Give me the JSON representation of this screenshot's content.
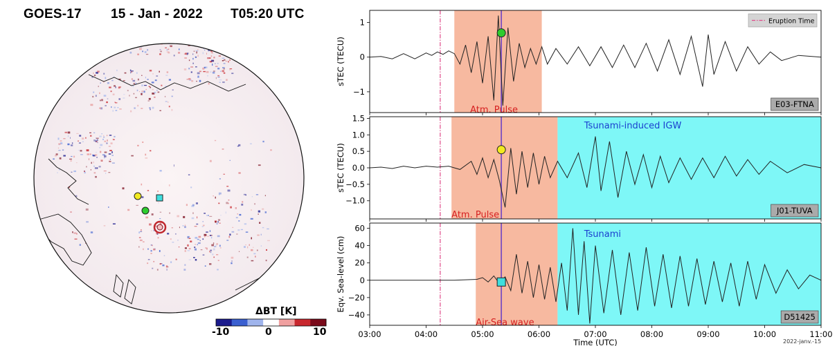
{
  "header": {
    "satellite": "GOES-17",
    "date": "15 - Jan - 2022",
    "time": "T05:20 UTC"
  },
  "colorbar": {
    "title": "ΔBT [K]",
    "min_label": "-10",
    "mid_label": "0",
    "max_label": "10",
    "colors": [
      "#1a1a8c",
      "#3a5fd0",
      "#9fb4ec",
      "#ffffff",
      "#f0a0a0",
      "#c8282e",
      "#7a0a1a"
    ]
  },
  "markers": {
    "yellow": "#f2ea20",
    "green": "#2ecc2e",
    "cyan": "#3fdede"
  },
  "colors": {
    "pulse_shade": "#f7b9a0",
    "igw_shade": "#7ef7f7",
    "vline": "#7a4fc0",
    "eruption_line": "#e04a8a",
    "annotation_red": "#d62020",
    "annotation_blue": "#1a3fcf"
  },
  "footnote": "2022-janv.-15",
  "chart_data": [
    {
      "type": "line",
      "station": "E03-FTNA",
      "ylabel": "sTEC (TECU)",
      "xlim": [
        3.0,
        11.0
      ],
      "ylim": [
        -1.6,
        1.35
      ],
      "yticks": [
        -1,
        0,
        1
      ],
      "ytick_labels": [
        "−1",
        "0",
        "1"
      ],
      "eruption_time": 4.25,
      "current_time": 5.333,
      "legend": "Eruption Time",
      "shaded": [
        {
          "from": 4.5,
          "to": 6.05,
          "kind": "pulse"
        }
      ],
      "annotations": [
        {
          "text": "Atm. Pulse",
          "x": 4.78,
          "y": -1.5,
          "kind": "red"
        }
      ],
      "marker": {
        "shape": "circle",
        "color": "green",
        "x": 5.333,
        "y": 0.7
      },
      "series": [
        {
          "values": [
            [
              3.0,
              0.0
            ],
            [
              3.2,
              0.02
            ],
            [
              3.4,
              -0.05
            ],
            [
              3.6,
              0.1
            ],
            [
              3.8,
              -0.05
            ],
            [
              4.0,
              0.12
            ],
            [
              4.1,
              0.05
            ],
            [
              4.2,
              0.15
            ],
            [
              4.3,
              0.08
            ],
            [
              4.4,
              0.18
            ],
            [
              4.5,
              0.1
            ],
            [
              4.6,
              -0.2
            ],
            [
              4.7,
              0.35
            ],
            [
              4.8,
              -0.45
            ],
            [
              4.9,
              0.45
            ],
            [
              5.0,
              -0.75
            ],
            [
              5.1,
              0.6
            ],
            [
              5.2,
              -1.25
            ],
            [
              5.28,
              1.2
            ],
            [
              5.36,
              -1.4
            ],
            [
              5.45,
              0.85
            ],
            [
              5.55,
              -0.7
            ],
            [
              5.65,
              0.4
            ],
            [
              5.75,
              -0.3
            ],
            [
              5.85,
              0.25
            ],
            [
              5.95,
              -0.2
            ],
            [
              6.05,
              0.3
            ],
            [
              6.15,
              -0.2
            ],
            [
              6.3,
              0.25
            ],
            [
              6.5,
              -0.2
            ],
            [
              6.7,
              0.3
            ],
            [
              6.9,
              -0.25
            ],
            [
              7.1,
              0.3
            ],
            [
              7.3,
              -0.3
            ],
            [
              7.5,
              0.35
            ],
            [
              7.7,
              -0.3
            ],
            [
              7.9,
              0.4
            ],
            [
              8.1,
              -0.4
            ],
            [
              8.3,
              0.5
            ],
            [
              8.5,
              -0.5
            ],
            [
              8.7,
              0.6
            ],
            [
              8.9,
              -0.85
            ],
            [
              9.0,
              0.65
            ],
            [
              9.1,
              -0.5
            ],
            [
              9.3,
              0.45
            ],
            [
              9.5,
              -0.4
            ],
            [
              9.7,
              0.3
            ],
            [
              9.9,
              -0.2
            ],
            [
              10.1,
              0.15
            ],
            [
              10.3,
              -0.1
            ],
            [
              10.6,
              0.05
            ],
            [
              11.0,
              0.0
            ]
          ]
        }
      ]
    },
    {
      "type": "line",
      "station": "J01-TUVA",
      "ylabel": "sTEC (TECU)",
      "xlim": [
        3.0,
        11.0
      ],
      "ylim": [
        -1.55,
        1.55
      ],
      "yticks": [
        -1.0,
        -0.5,
        0.0,
        0.5,
        1.0,
        1.5
      ],
      "ytick_labels": [
        "−1.0",
        "−0.5",
        "0.0",
        "0.5",
        "1.0",
        "1.5"
      ],
      "eruption_time": 4.25,
      "current_time": 5.333,
      "shaded": [
        {
          "from": 4.45,
          "to": 6.33,
          "kind": "pulse"
        },
        {
          "from": 6.33,
          "to": 11.0,
          "kind": "igw"
        }
      ],
      "annotations": [
        {
          "text": "Atm. Pulse",
          "x": 4.45,
          "y": -1.4,
          "kind": "red"
        },
        {
          "text": "Tsunami-induced IGW",
          "x": 6.8,
          "y": 1.3,
          "kind": "blue"
        }
      ],
      "marker": {
        "shape": "circle",
        "color": "yellow",
        "x": 5.333,
        "y": 0.55
      },
      "series": [
        {
          "values": [
            [
              3.0,
              0.0
            ],
            [
              3.2,
              0.02
            ],
            [
              3.4,
              -0.02
            ],
            [
              3.6,
              0.05
            ],
            [
              3.8,
              0.0
            ],
            [
              4.0,
              0.05
            ],
            [
              4.2,
              0.02
            ],
            [
              4.4,
              0.05
            ],
            [
              4.6,
              -0.05
            ],
            [
              4.8,
              0.2
            ],
            [
              4.9,
              -0.2
            ],
            [
              5.0,
              0.3
            ],
            [
              5.1,
              -0.3
            ],
            [
              5.2,
              0.25
            ],
            [
              5.3,
              -0.4
            ],
            [
              5.4,
              -1.2
            ],
            [
              5.5,
              0.6
            ],
            [
              5.6,
              -0.8
            ],
            [
              5.7,
              0.5
            ],
            [
              5.8,
              -0.6
            ],
            [
              5.9,
              0.45
            ],
            [
              6.0,
              -0.5
            ],
            [
              6.1,
              0.35
            ],
            [
              6.2,
              -0.3
            ],
            [
              6.33,
              0.2
            ],
            [
              6.5,
              -0.3
            ],
            [
              6.7,
              0.45
            ],
            [
              6.85,
              -0.6
            ],
            [
              7.0,
              0.95
            ],
            [
              7.1,
              -0.7
            ],
            [
              7.25,
              0.8
            ],
            [
              7.4,
              -0.9
            ],
            [
              7.55,
              0.5
            ],
            [
              7.7,
              -0.5
            ],
            [
              7.85,
              0.4
            ],
            [
              8.0,
              -0.6
            ],
            [
              8.15,
              0.35
            ],
            [
              8.3,
              -0.45
            ],
            [
              8.5,
              0.3
            ],
            [
              8.7,
              -0.35
            ],
            [
              8.9,
              0.3
            ],
            [
              9.1,
              -0.3
            ],
            [
              9.3,
              0.35
            ],
            [
              9.5,
              -0.25
            ],
            [
              9.7,
              0.25
            ],
            [
              9.9,
              -0.2
            ],
            [
              10.1,
              0.2
            ],
            [
              10.4,
              -0.15
            ],
            [
              10.7,
              0.1
            ],
            [
              11.0,
              0.0
            ]
          ]
        }
      ]
    },
    {
      "type": "line",
      "station": "D51425",
      "ylabel": "Eqv. Sea-level (cm)",
      "xlabel": "Time (UTC)",
      "xlim": [
        3.0,
        11.0
      ],
      "ylim": [
        -52,
        66
      ],
      "yticks": [
        -40,
        -20,
        0,
        20,
        40,
        60
      ],
      "ytick_labels": [
        "−40",
        "−20",
        "0",
        "20",
        "40",
        "60"
      ],
      "xticks": [
        3,
        4,
        5,
        6,
        7,
        8,
        9,
        10,
        11
      ],
      "xtick_labels": [
        "03:00",
        "04:00",
        "05:00",
        "06:00",
        "07:00",
        "08:00",
        "09:00",
        "10:00",
        "11:00"
      ],
      "eruption_time": 4.25,
      "current_time": 5.333,
      "shaded": [
        {
          "from": 4.88,
          "to": 6.33,
          "kind": "pulse"
        },
        {
          "from": 6.33,
          "to": 11.0,
          "kind": "igw"
        }
      ],
      "annotations": [
        {
          "text": "Air-Sea wave",
          "x": 4.88,
          "y": -48,
          "kind": "red"
        },
        {
          "text": "Tsunami",
          "x": 6.8,
          "y": 54,
          "kind": "blue"
        }
      ],
      "marker": {
        "shape": "square",
        "color": "cyan",
        "x": 5.333,
        "y": -2
      },
      "series": [
        {
          "values": [
            [
              3.0,
              0
            ],
            [
              3.5,
              0
            ],
            [
              4.0,
              0
            ],
            [
              4.5,
              0
            ],
            [
              4.9,
              1
            ],
            [
              5.0,
              3
            ],
            [
              5.1,
              -2
            ],
            [
              5.2,
              5
            ],
            [
              5.3,
              -4
            ],
            [
              5.4,
              4
            ],
            [
              5.5,
              -12
            ],
            [
              5.6,
              30
            ],
            [
              5.7,
              -15
            ],
            [
              5.8,
              22
            ],
            [
              5.9,
              -20
            ],
            [
              6.0,
              18
            ],
            [
              6.1,
              -22
            ],
            [
              6.2,
              15
            ],
            [
              6.3,
              -25
            ],
            [
              6.4,
              20
            ],
            [
              6.5,
              -35
            ],
            [
              6.6,
              60
            ],
            [
              6.7,
              -40
            ],
            [
              6.8,
              45
            ],
            [
              6.9,
              -50
            ],
            [
              7.0,
              40
            ],
            [
              7.15,
              -38
            ],
            [
              7.3,
              35
            ],
            [
              7.45,
              -40
            ],
            [
              7.6,
              32
            ],
            [
              7.75,
              -35
            ],
            [
              7.9,
              38
            ],
            [
              8.05,
              -30
            ],
            [
              8.2,
              30
            ],
            [
              8.35,
              -32
            ],
            [
              8.5,
              28
            ],
            [
              8.65,
              -30
            ],
            [
              8.8,
              25
            ],
            [
              8.95,
              -28
            ],
            [
              9.1,
              22
            ],
            [
              9.25,
              -25
            ],
            [
              9.4,
              20
            ],
            [
              9.55,
              -30
            ],
            [
              9.7,
              22
            ],
            [
              9.85,
              -22
            ],
            [
              10.0,
              18
            ],
            [
              10.2,
              -15
            ],
            [
              10.4,
              12
            ],
            [
              10.6,
              -10
            ],
            [
              10.8,
              6
            ],
            [
              11.0,
              0
            ]
          ]
        }
      ]
    }
  ]
}
